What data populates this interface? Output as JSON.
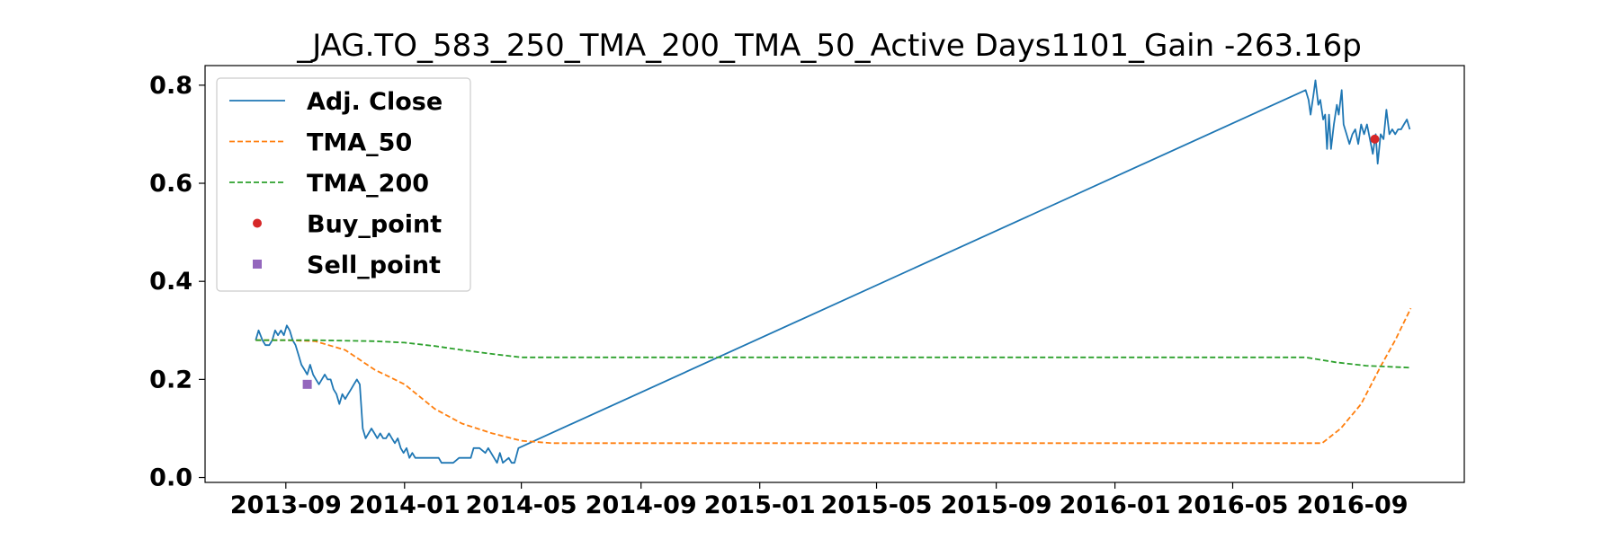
{
  "chart_data": {
    "type": "line",
    "title": "_JAG.TO_583_250_TMA_200_TMA_50_Active Days1101_Gain -263.16p",
    "xlabel": "",
    "ylabel": "",
    "x_axis_type": "date",
    "xlim": [
      "2013-06-10",
      "2016-12-25"
    ],
    "ylim": [
      -0.01,
      0.84
    ],
    "x_ticks": [
      {
        "date": "2013-09-01",
        "label": "2013-09"
      },
      {
        "date": "2014-01-01",
        "label": "2014-01"
      },
      {
        "date": "2014-05-01",
        "label": "2014-05"
      },
      {
        "date": "2014-09-01",
        "label": "2014-09"
      },
      {
        "date": "2015-01-01",
        "label": "2015-01"
      },
      {
        "date": "2015-05-01",
        "label": "2015-05"
      },
      {
        "date": "2015-09-01",
        "label": "2015-09"
      },
      {
        "date": "2016-01-01",
        "label": "2016-01"
      },
      {
        "date": "2016-05-01",
        "label": "2016-05"
      },
      {
        "date": "2016-09-01",
        "label": "2016-09"
      }
    ],
    "y_ticks": [
      {
        "value": 0.0,
        "label": "0.0"
      },
      {
        "value": 0.2,
        "label": "0.2"
      },
      {
        "value": 0.4,
        "label": "0.4"
      },
      {
        "value": 0.6,
        "label": "0.6"
      },
      {
        "value": 0.8,
        "label": "0.8"
      }
    ],
    "grid": false,
    "legend_position": "top-left",
    "series": [
      {
        "name": "Adj. Close",
        "color": "#1f77b4",
        "style": "solid",
        "points": [
          [
            "2013-08-01",
            0.28
          ],
          [
            "2013-08-04",
            0.3
          ],
          [
            "2013-08-08",
            0.28
          ],
          [
            "2013-08-11",
            0.27
          ],
          [
            "2013-08-15",
            0.27
          ],
          [
            "2013-08-18",
            0.28
          ],
          [
            "2013-08-21",
            0.3
          ],
          [
            "2013-08-24",
            0.29
          ],
          [
            "2013-08-27",
            0.3
          ],
          [
            "2013-08-30",
            0.29
          ],
          [
            "2013-09-02",
            0.31
          ],
          [
            "2013-09-05",
            0.3
          ],
          [
            "2013-09-08",
            0.28
          ],
          [
            "2013-09-11",
            0.27
          ],
          [
            "2013-09-14",
            0.25
          ],
          [
            "2013-09-17",
            0.23
          ],
          [
            "2013-09-20",
            0.22
          ],
          [
            "2013-09-23",
            0.21
          ],
          [
            "2013-09-26",
            0.23
          ],
          [
            "2013-09-29",
            0.21
          ],
          [
            "2013-10-02",
            0.2
          ],
          [
            "2013-10-05",
            0.19
          ],
          [
            "2013-10-08",
            0.2
          ],
          [
            "2013-10-11",
            0.21
          ],
          [
            "2013-10-14",
            0.2
          ],
          [
            "2013-10-17",
            0.2
          ],
          [
            "2013-10-20",
            0.18
          ],
          [
            "2013-10-23",
            0.17
          ],
          [
            "2013-10-26",
            0.15
          ],
          [
            "2013-10-29",
            0.17
          ],
          [
            "2013-11-01",
            0.16
          ],
          [
            "2013-11-04",
            0.17
          ],
          [
            "2013-11-07",
            0.18
          ],
          [
            "2013-11-10",
            0.19
          ],
          [
            "2013-11-13",
            0.2
          ],
          [
            "2013-11-16",
            0.19
          ],
          [
            "2013-11-19",
            0.1
          ],
          [
            "2013-11-22",
            0.08
          ],
          [
            "2013-11-25",
            0.09
          ],
          [
            "2013-11-28",
            0.1
          ],
          [
            "2013-12-01",
            0.09
          ],
          [
            "2013-12-04",
            0.08
          ],
          [
            "2013-12-07",
            0.09
          ],
          [
            "2013-12-10",
            0.08
          ],
          [
            "2013-12-13",
            0.08
          ],
          [
            "2013-12-16",
            0.09
          ],
          [
            "2013-12-19",
            0.08
          ],
          [
            "2013-12-22",
            0.07
          ],
          [
            "2013-12-25",
            0.08
          ],
          [
            "2013-12-28",
            0.06
          ],
          [
            "2013-12-31",
            0.05
          ],
          [
            "2014-01-03",
            0.06
          ],
          [
            "2014-01-06",
            0.04
          ],
          [
            "2014-01-09",
            0.05
          ],
          [
            "2014-01-12",
            0.04
          ],
          [
            "2014-01-18",
            0.04
          ],
          [
            "2014-01-24",
            0.04
          ],
          [
            "2014-01-30",
            0.04
          ],
          [
            "2014-02-05",
            0.04
          ],
          [
            "2014-02-08",
            0.03
          ],
          [
            "2014-02-14",
            0.03
          ],
          [
            "2014-02-20",
            0.03
          ],
          [
            "2014-02-26",
            0.04
          ],
          [
            "2014-03-04",
            0.04
          ],
          [
            "2014-03-10",
            0.04
          ],
          [
            "2014-03-13",
            0.06
          ],
          [
            "2014-03-19",
            0.06
          ],
          [
            "2014-03-25",
            0.05
          ],
          [
            "2014-03-28",
            0.06
          ],
          [
            "2014-04-03",
            0.04
          ],
          [
            "2014-04-06",
            0.03
          ],
          [
            "2014-04-09",
            0.05
          ],
          [
            "2014-04-12",
            0.03
          ],
          [
            "2014-04-18",
            0.04
          ],
          [
            "2014-04-21",
            0.03
          ],
          [
            "2014-04-24",
            0.03
          ],
          [
            "2014-04-28",
            0.06
          ],
          [
            "2016-07-15",
            0.79
          ],
          [
            "2016-07-18",
            0.77
          ],
          [
            "2016-07-20",
            0.74
          ],
          [
            "2016-07-23",
            0.78
          ],
          [
            "2016-07-25",
            0.81
          ],
          [
            "2016-07-28",
            0.76
          ],
          [
            "2016-07-30",
            0.77
          ],
          [
            "2016-08-02",
            0.73
          ],
          [
            "2016-08-04",
            0.74
          ],
          [
            "2016-08-06",
            0.67
          ],
          [
            "2016-08-08",
            0.74
          ],
          [
            "2016-08-10",
            0.67
          ],
          [
            "2016-08-13",
            0.72
          ],
          [
            "2016-08-16",
            0.76
          ],
          [
            "2016-08-18",
            0.74
          ],
          [
            "2016-08-21",
            0.79
          ],
          [
            "2016-08-23",
            0.72
          ],
          [
            "2016-08-26",
            0.7
          ],
          [
            "2016-08-29",
            0.68
          ],
          [
            "2016-09-01",
            0.7
          ],
          [
            "2016-09-04",
            0.71
          ],
          [
            "2016-09-07",
            0.68
          ],
          [
            "2016-09-10",
            0.72
          ],
          [
            "2016-09-13",
            0.7
          ],
          [
            "2016-09-16",
            0.72
          ],
          [
            "2016-09-19",
            0.69
          ],
          [
            "2016-09-22",
            0.66
          ],
          [
            "2016-09-25",
            0.7
          ],
          [
            "2016-09-27",
            0.64
          ],
          [
            "2016-09-30",
            0.7
          ],
          [
            "2016-10-03",
            0.69
          ],
          [
            "2016-10-06",
            0.75
          ],
          [
            "2016-10-09",
            0.7
          ],
          [
            "2016-10-12",
            0.71
          ],
          [
            "2016-10-15",
            0.7
          ],
          [
            "2016-10-18",
            0.71
          ],
          [
            "2016-10-21",
            0.71
          ],
          [
            "2016-10-24",
            0.72
          ],
          [
            "2016-10-27",
            0.73
          ],
          [
            "2016-10-30",
            0.71
          ]
        ]
      },
      {
        "name": "TMA_50",
        "color": "#ff7f0e",
        "style": "dashed",
        "points": [
          [
            "2013-08-01",
            0.28
          ],
          [
            "2013-09-01",
            0.28
          ],
          [
            "2013-10-01",
            0.278
          ],
          [
            "2013-11-01",
            0.26
          ],
          [
            "2013-12-01",
            0.22
          ],
          [
            "2014-01-01",
            0.19
          ],
          [
            "2014-02-01",
            0.14
          ],
          [
            "2014-03-01",
            0.11
          ],
          [
            "2014-04-01",
            0.09
          ],
          [
            "2014-05-01",
            0.075
          ],
          [
            "2014-06-01",
            0.07
          ],
          [
            "2016-07-01",
            0.07
          ],
          [
            "2016-08-01",
            0.07
          ],
          [
            "2016-08-20",
            0.1
          ],
          [
            "2016-09-10",
            0.15
          ],
          [
            "2016-10-01",
            0.23
          ],
          [
            "2016-10-15",
            0.28
          ],
          [
            "2016-10-31",
            0.345
          ]
        ]
      },
      {
        "name": "TMA_200",
        "color": "#2ca02c",
        "style": "dashed",
        "points": [
          [
            "2013-08-01",
            0.28
          ],
          [
            "2013-10-01",
            0.28
          ],
          [
            "2013-12-01",
            0.278
          ],
          [
            "2014-01-01",
            0.275
          ],
          [
            "2014-02-01",
            0.268
          ],
          [
            "2014-03-01",
            0.26
          ],
          [
            "2014-04-01",
            0.252
          ],
          [
            "2014-05-01",
            0.245
          ],
          [
            "2016-07-15",
            0.245
          ],
          [
            "2016-08-15",
            0.235
          ],
          [
            "2016-09-15",
            0.228
          ],
          [
            "2016-10-31",
            0.224
          ]
        ]
      },
      {
        "name": "Buy_point",
        "color": "#d62728",
        "style": "marker-circle",
        "points": [
          [
            "2016-09-24",
            0.69
          ]
        ]
      },
      {
        "name": "Sell_point",
        "color": "#9467bd",
        "style": "marker-square",
        "points": [
          [
            "2013-09-23",
            0.19
          ]
        ]
      }
    ]
  }
}
